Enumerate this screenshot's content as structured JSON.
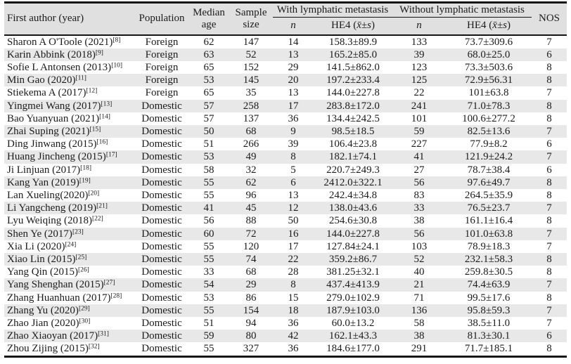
{
  "table": {
    "columns": {
      "first_author": "First author (year)",
      "population": "Population",
      "median_age": "Median age",
      "sample_size": "Sample size",
      "with_group": "With lymphatic metastasis",
      "without_group": "Without lymphatic metastasis",
      "n_label": "n",
      "he4_prefix": "HE4 (",
      "he4_stat": "x̄±s",
      "he4_suffix": ")",
      "nos": "NOS"
    },
    "rows": [
      {
        "author": "Sharon A O'Toole (2021)",
        "ref": "[8]",
        "population": "Foreign",
        "median_age": "62",
        "sample_size": "147",
        "with_n": "14",
        "with_he4": "158.3±89.9",
        "without_n": "133",
        "without_he4": "73.7±309.6",
        "nos": "7"
      },
      {
        "author": "Karin Abbink (2018)",
        "ref": "[9]",
        "population": "Foreign",
        "median_age": "63",
        "sample_size": "52",
        "with_n": "13",
        "with_he4": "165.2±85.0",
        "without_n": "39",
        "without_he4": "68.0±25.0",
        "nos": "6"
      },
      {
        "author": "Sofie L Antonsen (2013)",
        "ref": "[10]",
        "population": "Foreign",
        "median_age": "65",
        "sample_size": "152",
        "with_n": "29",
        "with_he4": "141.5±862.0",
        "without_n": "123",
        "without_he4": "73.3±503.6",
        "nos": "8"
      },
      {
        "author": "Min Gao (2020)",
        "ref": "[11]",
        "population": "Foreign",
        "median_age": "53",
        "sample_size": "145",
        "with_n": "20",
        "with_he4": "197.2±233.4",
        "without_n": "125",
        "without_he4": "72.9±56.31",
        "nos": "8"
      },
      {
        "author": "Stiekema A (2017)",
        "ref": "[12]",
        "population": "Foreign",
        "median_age": "65",
        "sample_size": "35",
        "with_n": "13",
        "with_he4": "144.0±227.8",
        "without_n": "22",
        "without_he4": "101±63.8",
        "nos": "7"
      },
      {
        "author": "Yingmei Wang (2017)",
        "ref": "[13]",
        "population": "Domestic",
        "median_age": "57",
        "sample_size": "258",
        "with_n": "17",
        "with_he4": "283.8±172.0",
        "without_n": "241",
        "without_he4": "71.0±78.3",
        "nos": "8"
      },
      {
        "author": "Bao Yuanyuan (2021)",
        "ref": "[14]",
        "population": "Domestic",
        "median_age": "57",
        "sample_size": "137",
        "with_n": "36",
        "with_he4": "134.4±242.5",
        "without_n": "101",
        "without_he4": "100.6±277.2",
        "nos": "8"
      },
      {
        "author": "Zhai Suping (2021)",
        "ref": "[15]",
        "population": "Domestic",
        "median_age": "50",
        "sample_size": "68",
        "with_n": "9",
        "with_he4": "98.5±18.5",
        "without_n": "59",
        "without_he4": "82.5±13.6",
        "nos": "7"
      },
      {
        "author": "Ding Jinwang (2015)",
        "ref": "[16]",
        "population": "Domestic",
        "median_age": "51",
        "sample_size": "266",
        "with_n": "39",
        "with_he4": "106.4±23.8",
        "without_n": "227",
        "without_he4": "77.9±8.2",
        "nos": "6"
      },
      {
        "author": "Huang Jincheng (2015)",
        "ref": "[17]",
        "population": "Domestic",
        "median_age": "53",
        "sample_size": "49",
        "with_n": "8",
        "with_he4": "182.1±74.1",
        "without_n": "41",
        "without_he4": "121.9±24.2",
        "nos": "7"
      },
      {
        "author": "Ji Linjuan (2017)",
        "ref": "[18]",
        "population": "Domestic",
        "median_age": "58",
        "sample_size": "32",
        "with_n": "5",
        "with_he4": "220.7±249.3",
        "without_n": "27",
        "without_he4": "78.7±38.4",
        "nos": "6"
      },
      {
        "author": "Kang Yan (2019)",
        "ref": "[19]",
        "population": "Domestic",
        "median_age": "55",
        "sample_size": "62",
        "with_n": "6",
        "with_he4": "2412.0±322.1",
        "without_n": "56",
        "without_he4": "97.6±49.7",
        "nos": "8"
      },
      {
        "author": "Lan Xueling(2020)",
        "ref": "[20]",
        "population": "Domestic",
        "median_age": "55",
        "sample_size": "96",
        "with_n": "13",
        "with_he4": "242.4±34.8",
        "without_n": "83",
        "without_he4": "264.5±35.9",
        "nos": "8"
      },
      {
        "author": "Li Yangcheng (2019)",
        "ref": "[21]",
        "population": "Domestic",
        "median_age": "41",
        "sample_size": "45",
        "with_n": "12",
        "with_he4": "138.0±43.6",
        "without_n": "33",
        "without_he4": "76.5±23.7",
        "nos": "7"
      },
      {
        "author": "Lyu Weiqing (2018)",
        "ref": "[22]",
        "population": "Domestic",
        "median_age": "56",
        "sample_size": "88",
        "with_n": "50",
        "with_he4": "254.6±30.8",
        "without_n": "38",
        "without_he4": "161.1±16.4",
        "nos": "8"
      },
      {
        "author": "Shen Ye (2017)",
        "ref": "[23]",
        "population": "Domestic",
        "median_age": "60",
        "sample_size": "72",
        "with_n": "16",
        "with_he4": "144.0±227.8",
        "without_n": "56",
        "without_he4": "101.0±63.8",
        "nos": "7"
      },
      {
        "author": "Xia Li (2020)",
        "ref": "[24]",
        "population": "Domestic",
        "median_age": "55",
        "sample_size": "120",
        "with_n": "17",
        "with_he4": "127.84±24.1",
        "without_n": "103",
        "without_he4": "78.9±18.3",
        "nos": "7"
      },
      {
        "author": "Xiao Lin (2015)",
        "ref": "[25]",
        "population": "Domestic",
        "median_age": "55",
        "sample_size": "74",
        "with_n": "22",
        "with_he4": "359.2±86.7",
        "without_n": "52",
        "without_he4": "232.1±58.3",
        "nos": "8"
      },
      {
        "author": "Yang Qin (2015)",
        "ref": "[26]",
        "population": "Domestic",
        "median_age": "33",
        "sample_size": "68",
        "with_n": "28",
        "with_he4": "381.25±32.1",
        "without_n": "40",
        "without_he4": "259.8±30.5",
        "nos": "8"
      },
      {
        "author": "Yang Shenghan (2015)",
        "ref": "[27]",
        "population": "Domestic",
        "median_age": "54",
        "sample_size": "29",
        "with_n": "8",
        "with_he4": "437.4±413.9",
        "without_n": "21",
        "without_he4": "74.4±63.9",
        "nos": "7"
      },
      {
        "author": "Zhang Huanhuan (2017)",
        "ref": "[28]",
        "population": "Domestic",
        "median_age": "53",
        "sample_size": "86",
        "with_n": "15",
        "with_he4": "279.0±102.9",
        "without_n": "71",
        "without_he4": "99.5±17.6",
        "nos": "8"
      },
      {
        "author": "Zhang Yu (2020)",
        "ref": "[29]",
        "population": "Domestic",
        "median_age": "55",
        "sample_size": "154",
        "with_n": "18",
        "with_he4": "187.9±103.0",
        "without_n": "136",
        "without_he4": "95.8±59.3",
        "nos": "7"
      },
      {
        "author": "Zhao Jian (2020)",
        "ref": "[30]",
        "population": "Domestic",
        "median_age": "51",
        "sample_size": "94",
        "with_n": "36",
        "with_he4": "60.0±13.2",
        "without_n": "58",
        "without_he4": "38.5±11.0",
        "nos": "7"
      },
      {
        "author": "Zhao Xiaoyan (2017)",
        "ref": "[31]",
        "population": "Domestic",
        "median_age": "59",
        "sample_size": "80",
        "with_n": "42",
        "with_he4": "162.1±43.3",
        "without_n": "38",
        "without_he4": "81.3±30.1",
        "nos": "6"
      },
      {
        "author": "Zhou Zijing (2015)",
        "ref": "[32]",
        "population": "Domestic",
        "median_age": "55",
        "sample_size": "327",
        "with_n": "36",
        "with_he4": "184.6±177.0",
        "without_n": "291",
        "without_he4": "71.7±185.1",
        "nos": "8"
      }
    ]
  }
}
